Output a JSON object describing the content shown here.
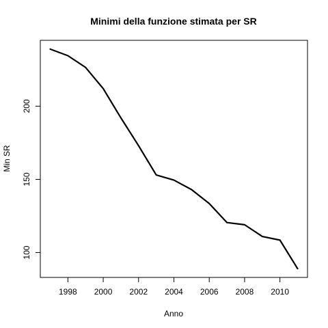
{
  "chart_data": {
    "type": "line",
    "title": "Minimi della funzione stimata per SR",
    "xlabel": "Anno",
    "ylabel": "Min SR",
    "x": [
      1997,
      1998,
      1999,
      2000,
      2001,
      2002,
      2003,
      2004,
      2005,
      2006,
      2007,
      2008,
      2009,
      2010,
      2011
    ],
    "series": [
      {
        "values": [
          239,
          234.5,
          226.5,
          212,
          192,
          173,
          153,
          149.5,
          143,
          133.5,
          120.5,
          119,
          111,
          108.5,
          89
        ]
      }
    ],
    "xticks": [
      1998,
      2000,
      2002,
      2004,
      2006,
      2008,
      2010
    ],
    "yticks": [
      100,
      150,
      200
    ],
    "xlim": [
      1996.44,
      2011.56
    ],
    "ylim": [
      83,
      245
    ],
    "grid": false,
    "line_color": "#000000"
  }
}
